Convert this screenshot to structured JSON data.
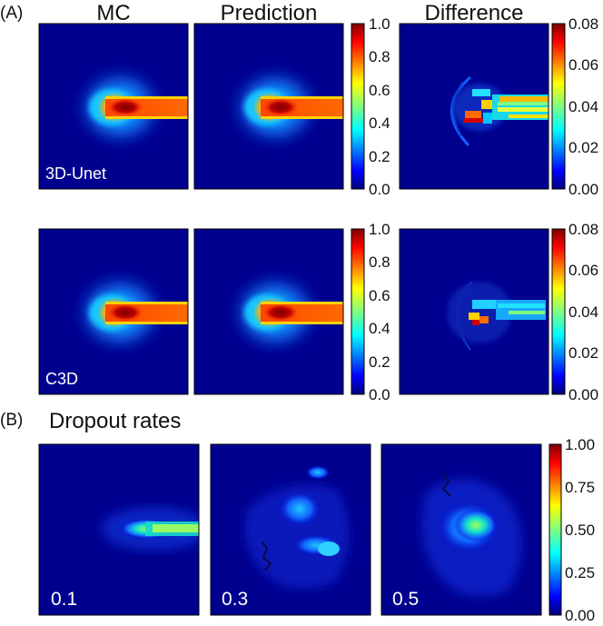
{
  "panel_labels": {
    "a": "(A)",
    "b": "(B)"
  },
  "column_titles": [
    "MC",
    "Prediction",
    "Difference"
  ],
  "row_labels": [
    "3D-Unet",
    "C3D"
  ],
  "section_b_title": "Dropout rates",
  "dropout_labels": [
    "0.1",
    "0.3",
    "0.5"
  ],
  "colors": {
    "jet": [
      "#00007f",
      "#0000ff",
      "#007fff",
      "#00ffff",
      "#7fff7f",
      "#ffff00",
      "#ff7f00",
      "#ff0000",
      "#7f0000"
    ],
    "background": "#00008f"
  },
  "chart_data": [
    {
      "type": "heatmap",
      "subplots": [
        "MC",
        "Prediction"
      ],
      "colorbar": {
        "range": [
          0.0,
          1.0
        ],
        "ticks": [
          "0.0",
          "0.2",
          "0.4",
          "0.6",
          "0.8",
          "1.0"
        ]
      }
    },
    {
      "type": "heatmap",
      "subplots": [
        "Difference"
      ],
      "colorbar": {
        "range": [
          0.0,
          0.08
        ],
        "ticks": [
          "0.00",
          "0.02",
          "0.04",
          "0.06",
          "0.08"
        ]
      }
    },
    {
      "type": "heatmap",
      "subplots": [
        "0.1",
        "0.3",
        "0.5"
      ],
      "colorbar": {
        "range": [
          0.0,
          1.0
        ],
        "ticks": [
          "0.00",
          "0.25",
          "0.50",
          "0.75",
          "1.00"
        ]
      }
    }
  ]
}
